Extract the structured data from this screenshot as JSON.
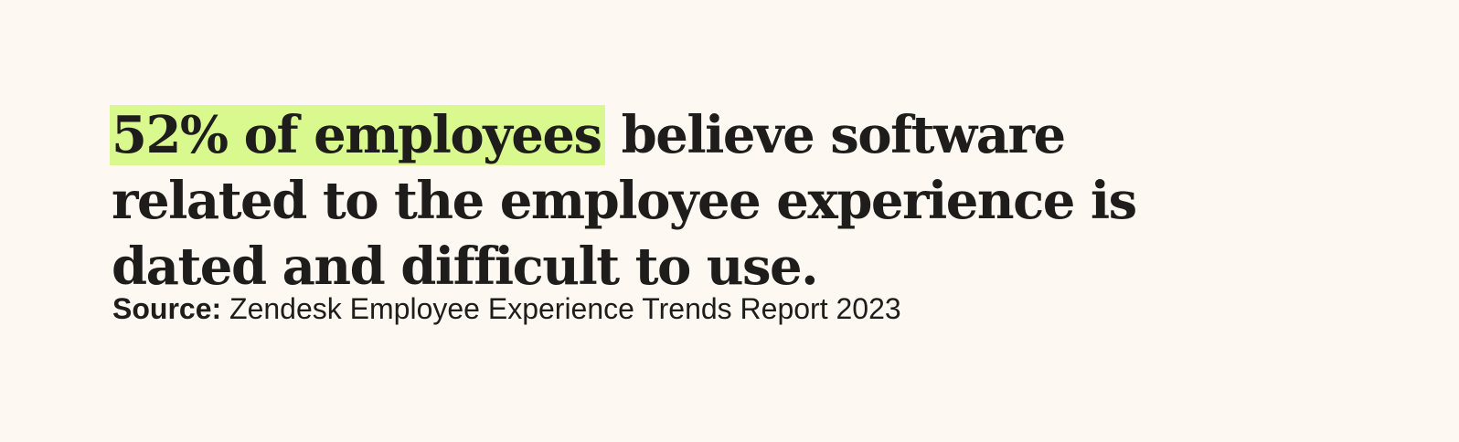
{
  "quote": {
    "highlight": "52% of employees",
    "rest": "believe software related to the employee experience is dated and difficult to use."
  },
  "source": {
    "label": "Source:",
    "text": "Zendesk Employee Experience Trends Report 2023"
  }
}
